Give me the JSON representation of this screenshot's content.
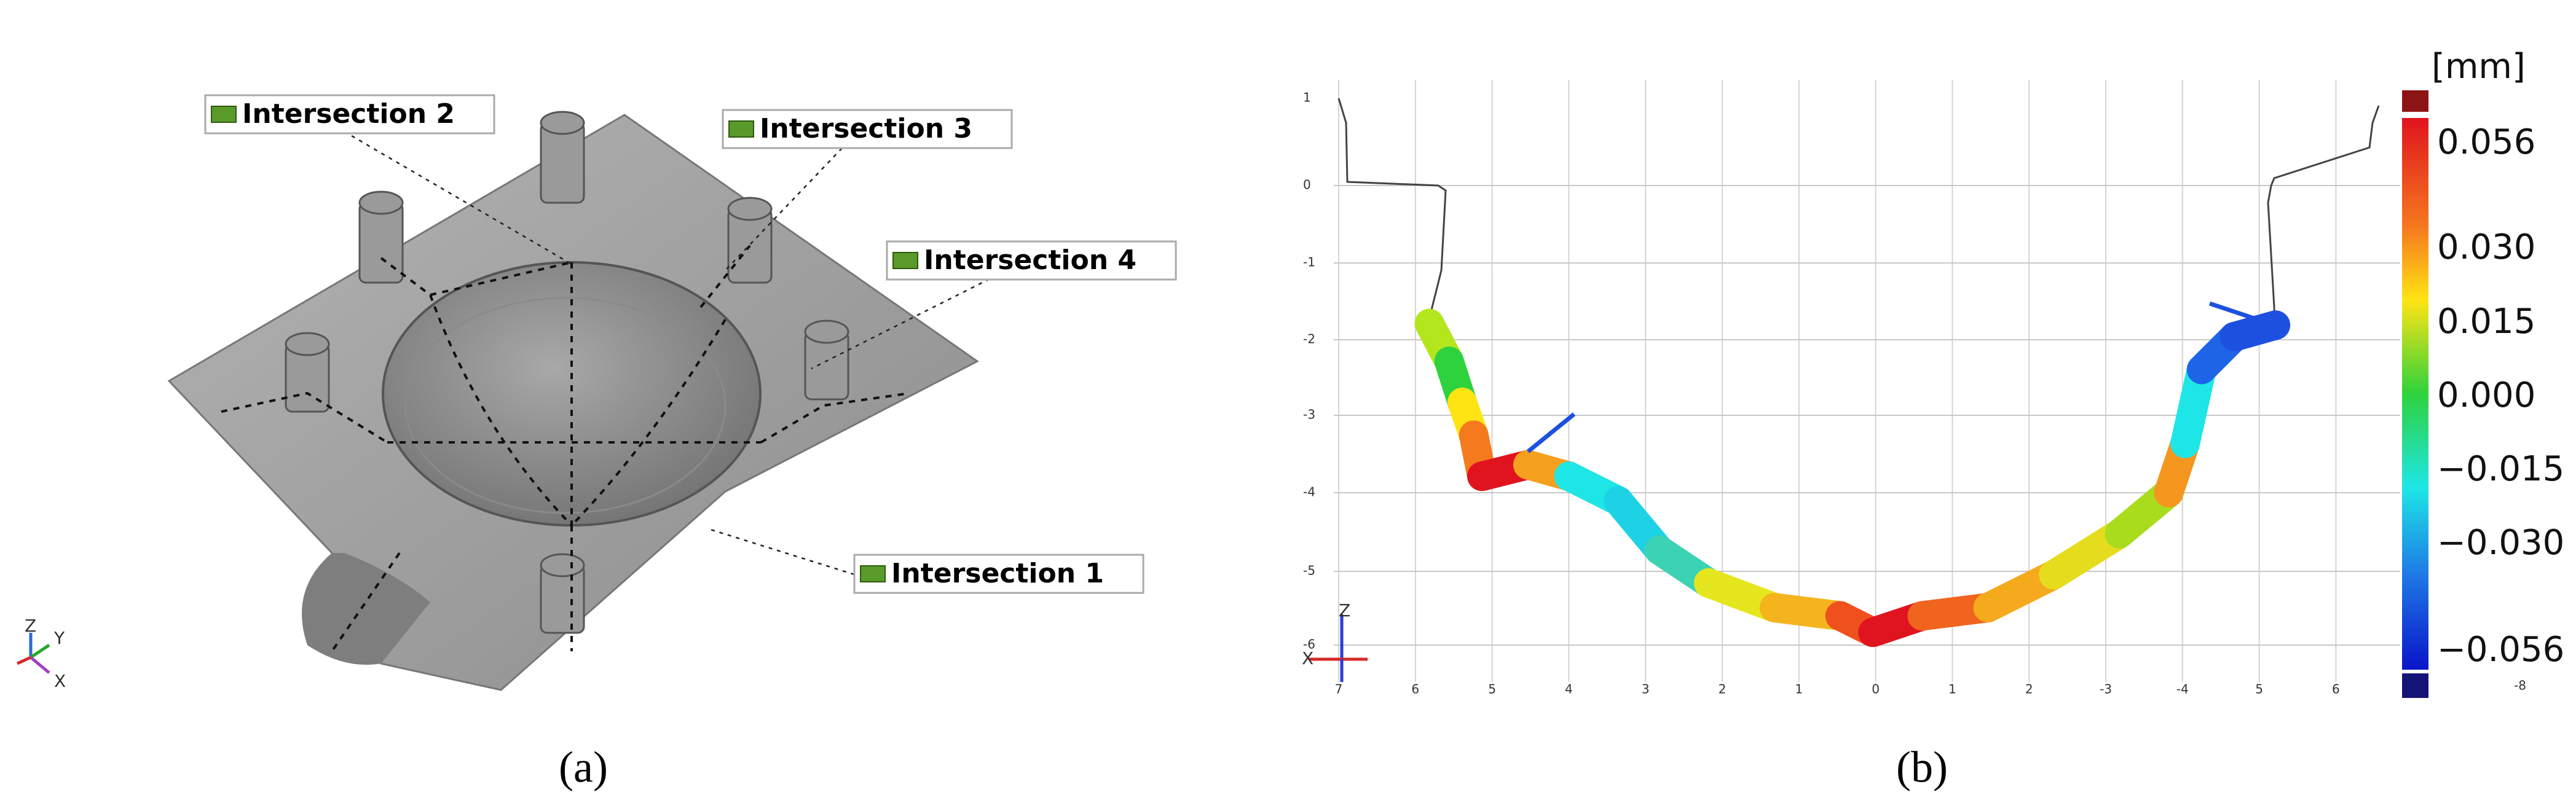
{
  "panel_a": {
    "labels": [
      "Intersection 2",
      "Intersection 3",
      "Intersection 4",
      "Intersection 1"
    ],
    "axes": [
      "Z",
      "Y",
      "X"
    ],
    "caption": "(a)"
  },
  "panel_b": {
    "y_labels": [
      "1",
      "0",
      "-1",
      "-2",
      "-3",
      "-4",
      "-5",
      "-6"
    ],
    "x_labels": [
      "7",
      "6",
      "5",
      "4",
      "3",
      "2",
      "1",
      "0",
      "1",
      "2",
      "-3",
      "-4",
      "5",
      "6"
    ],
    "unit": "[mm]",
    "scale_labels": [
      "0.056",
      "0.030",
      "0.015",
      "0.000",
      "−0.015",
      "−0.030",
      "−0.056"
    ],
    "scale_end": "-8",
    "axes": [
      "Z",
      "X"
    ],
    "caption": "(b)"
  }
}
